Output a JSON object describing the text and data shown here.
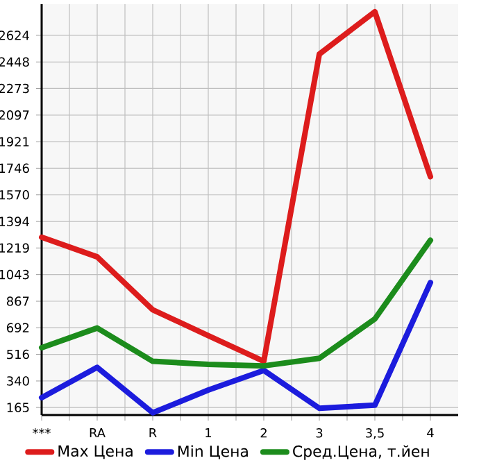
{
  "chart_data": {
    "type": "line",
    "categories": [
      "***",
      "RA",
      "R",
      "1",
      "2",
      "3",
      "3,5",
      "4"
    ],
    "series": [
      {
        "name": "Max Цена",
        "color": "#dd1c1c",
        "values": [
          1290,
          1160,
          810,
          640,
          470,
          2500,
          2780,
          1690
        ]
      },
      {
        "name": "Min Цена",
        "color": "#1c1cdd",
        "values": [
          230,
          430,
          130,
          280,
          410,
          160,
          180,
          990
        ]
      },
      {
        "name": "Сред.Цена, т.йен",
        "color": "#1c8c1c",
        "values": [
          560,
          690,
          470,
          450,
          440,
          490,
          750,
          1270
        ]
      }
    ],
    "ylim": [
      115,
      2830
    ],
    "yticks": [
      165,
      340,
      516,
      692,
      867,
      1043,
      1219,
      1394,
      1570,
      1746,
      1921,
      2097,
      2273,
      2448,
      2624
    ],
    "grid": true,
    "legend": "bottom",
    "marker": "none",
    "line_style": "solid"
  }
}
